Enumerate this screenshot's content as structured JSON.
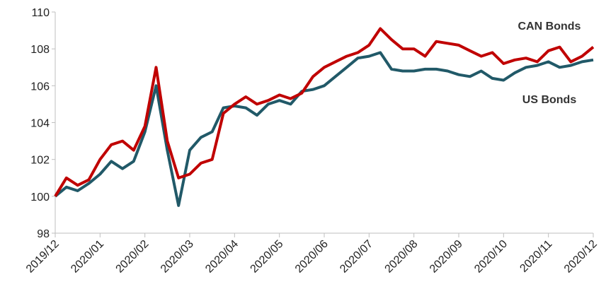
{
  "chart_data": {
    "type": "line",
    "categories": [
      "2019/12",
      null,
      null,
      null,
      "2020/01",
      null,
      null,
      null,
      "2020/02",
      null,
      null,
      null,
      "2020/03",
      null,
      null,
      null,
      "2020/04",
      null,
      null,
      null,
      "2020/05",
      null,
      null,
      null,
      "2020/06",
      null,
      null,
      null,
      "2020/07",
      null,
      null,
      null,
      "2020/08",
      null,
      null,
      null,
      "2020/09",
      null,
      null,
      null,
      "2020/10",
      null,
      null,
      null,
      "2020/11",
      null,
      null,
      null,
      "2020/12"
    ],
    "series": [
      {
        "name": "CAN Bonds",
        "color": "#c00000",
        "values": [
          100,
          101,
          100.6,
          100.9,
          102.0,
          102.8,
          103.0,
          102.5,
          103.8,
          107.0,
          103.0,
          101.0,
          101.2,
          101.8,
          102.0,
          104.5,
          105.0,
          105.4,
          105.0,
          105.2,
          105.5,
          105.3,
          105.6,
          106.5,
          107.0,
          107.3,
          107.6,
          107.8,
          108.2,
          109.1,
          108.5,
          108.0,
          108.0,
          107.6,
          108.4,
          108.3,
          108.2,
          107.9,
          107.6,
          107.8,
          107.2,
          107.4,
          107.5,
          107.3,
          107.9,
          108.1,
          107.3,
          107.6,
          108.1
        ]
      },
      {
        "name": "US Bonds",
        "color": "#215968",
        "values": [
          100,
          100.5,
          100.3,
          100.7,
          101.2,
          101.9,
          101.5,
          101.9,
          103.5,
          106.0,
          102.5,
          99.5,
          102.5,
          103.2,
          103.5,
          104.8,
          104.9,
          104.8,
          104.4,
          105.0,
          105.2,
          105.0,
          105.7,
          105.8,
          106.0,
          106.5,
          107.0,
          107.5,
          107.6,
          107.8,
          106.9,
          106.8,
          106.8,
          106.9,
          106.9,
          106.8,
          106.6,
          106.5,
          106.8,
          106.4,
          106.3,
          106.7,
          107.0,
          107.1,
          107.3,
          107.0,
          107.1,
          107.3,
          107.4
        ]
      }
    ],
    "ylim": [
      98,
      110
    ],
    "yticks": [
      98,
      100,
      102,
      104,
      106,
      108,
      110
    ],
    "grid": false
  }
}
